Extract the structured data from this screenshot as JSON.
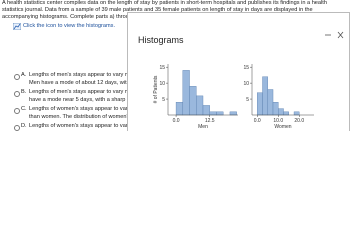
{
  "problem": {
    "lines": [
      "A health statistics center compiles data on the length of stay by patients in short-term hospitals and publishes its findings in a health",
      "statistics journal. Data from a sample of 39 male patients and 35 female patients on length of stay in days are displayed in the",
      "accompanying histograms. Complete parts a) through c) below."
    ],
    "link": "Click the icon to view the histograms."
  },
  "options": [
    {
      "letter": "A.",
      "lines": [
        "Lengths of men's stays appear to vary more",
        "Men have a mode of about 12 days, with mo"
      ]
    },
    {
      "letter": "B.",
      "lines": [
        "Lengths of men's stays appear to vary more",
        "have a mode near 5 days, with a sharp drop"
      ]
    },
    {
      "letter": "C.",
      "lines": [
        "Lengths of women's stays appear to vary m",
        "than women. The distribution of women's sta"
      ]
    },
    {
      "letter": "D.",
      "lines": [
        "Lengths of women's stays appear to vary mo"
      ]
    }
  ],
  "popup": {
    "title": "Histograms",
    "charts": [
      {
        "type": "histogram",
        "xlabel": "Men",
        "ylabel": "# of Patients",
        "bins": [
          0,
          2.5,
          5,
          7.5,
          10,
          12.5,
          15,
          17.5,
          20,
          22.5
        ],
        "counts": [
          4,
          14,
          9,
          6,
          3,
          1,
          1,
          0,
          1
        ],
        "xlim": [
          -3,
          23
        ],
        "xticks": [
          {
            "value": 0,
            "label": "0.0"
          },
          {
            "value": 12.5,
            "label": "12.5"
          }
        ],
        "ylim": [
          0,
          16
        ],
        "yticks": [
          5,
          10,
          15
        ],
        "color": "#9ab8dd"
      },
      {
        "type": "histogram",
        "xlabel": "Women",
        "bins": [
          0,
          2.5,
          5,
          7.5,
          10,
          12.5,
          15,
          17.5,
          20,
          22.5,
          25
        ],
        "counts": [
          7,
          12,
          8,
          4,
          2,
          1,
          0,
          1,
          0,
          0
        ],
        "xlim": [
          -2.5,
          27
        ],
        "xticks": [
          {
            "value": 0,
            "label": "0.0"
          },
          {
            "value": 10,
            "label": "10.0"
          },
          {
            "value": 20,
            "label": "20.0"
          }
        ],
        "ylim": [
          0,
          16
        ],
        "yticks": [
          5,
          10,
          15
        ],
        "color": "#9ab8dd"
      }
    ]
  }
}
